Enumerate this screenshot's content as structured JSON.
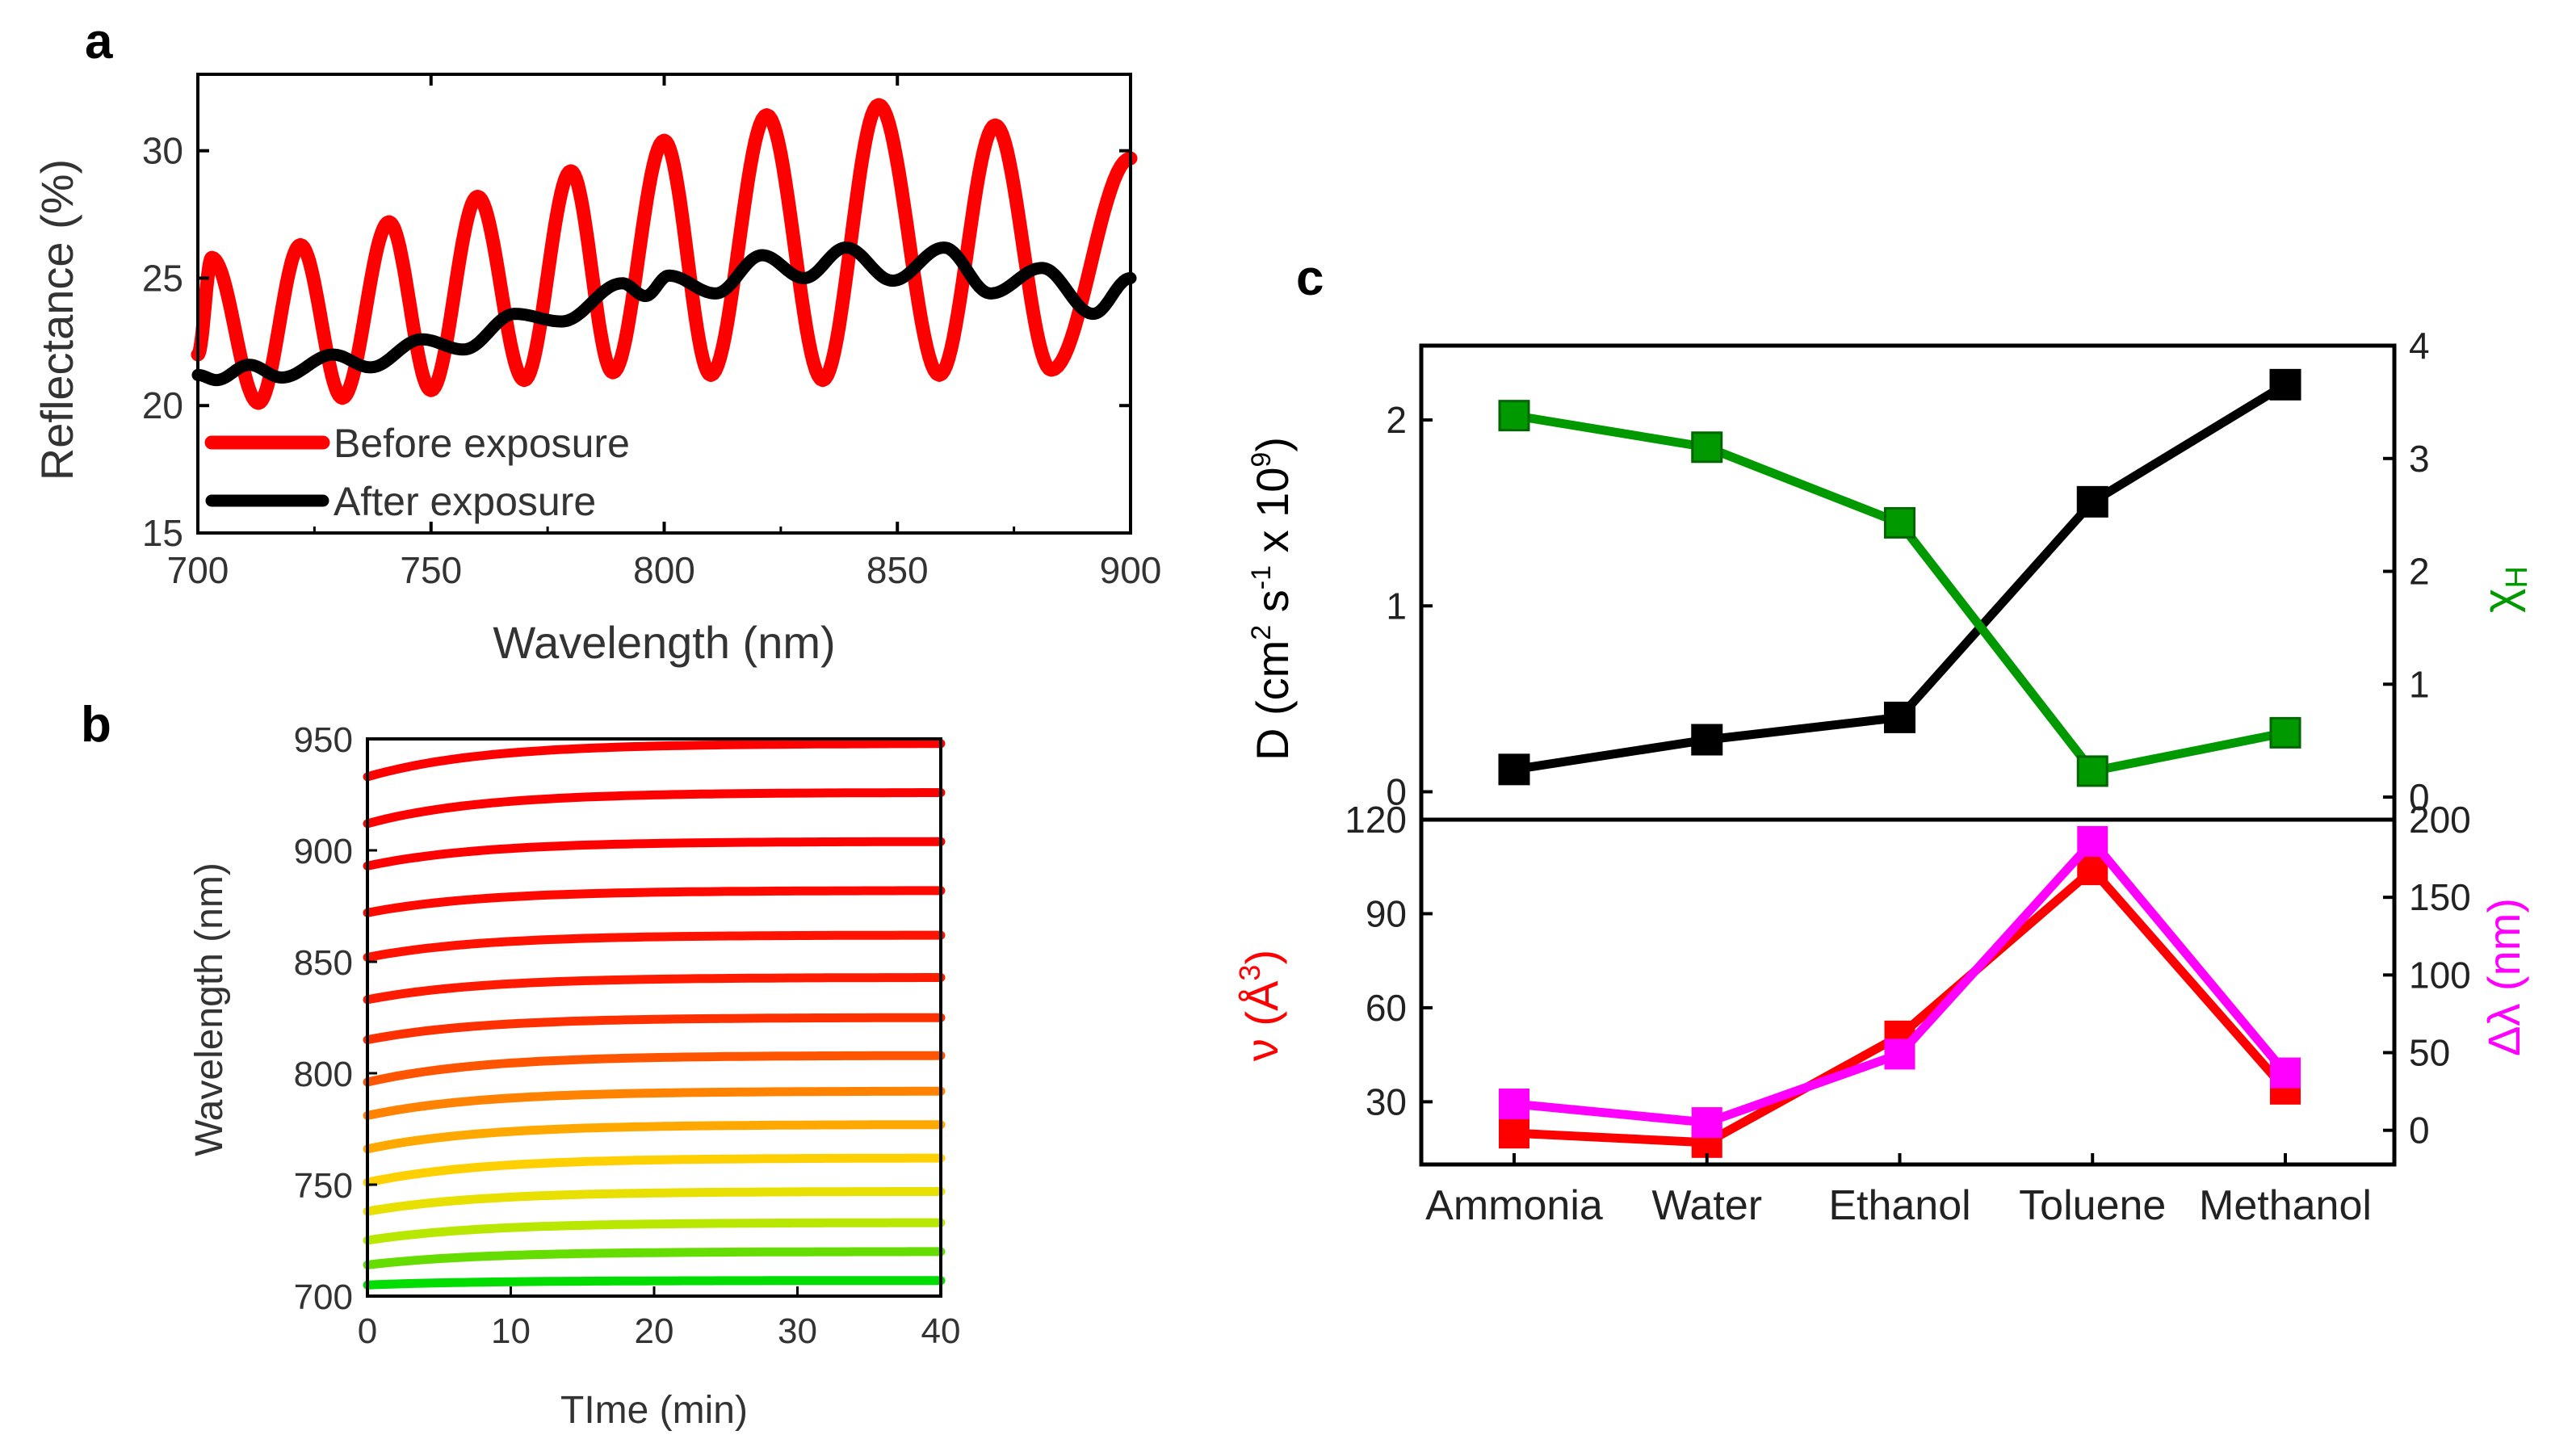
{
  "panels": {
    "a": {
      "letter": "a",
      "chart_data": {
        "type": "line",
        "xlabel": "Wavelength (nm)",
        "ylabel": "Reflectance (%)",
        "xlim": [
          700,
          900
        ],
        "ylim": [
          15,
          33
        ],
        "xticks": [
          700,
          750,
          800,
          850,
          900
        ],
        "yticks": [
          15,
          20,
          25,
          30
        ],
        "series": [
          {
            "name": "Before exposure",
            "color": "#ff0000",
            "peaks": [
              [
                703,
                25.8
              ],
              [
                722,
                26.3
              ],
              [
                741,
                27.2
              ],
              [
                760,
                28.2
              ],
              [
                780,
                29.2
              ],
              [
                800,
                30.4
              ],
              [
                822,
                31.4
              ],
              [
                846,
                31.8
              ],
              [
                871,
                31.0
              ],
              [
                900,
                29.7
              ]
            ],
            "troughs": [
              [
                700,
                22.0
              ],
              [
                713,
                20.1
              ],
              [
                731,
                20.3
              ],
              [
                750,
                20.6
              ],
              [
                770,
                21.0
              ],
              [
                789,
                21.3
              ],
              [
                810,
                21.2
              ],
              [
                834,
                21.0
              ],
              [
                859,
                21.2
              ],
              [
                883,
                21.4
              ]
            ]
          },
          {
            "name": "After exposure",
            "color": "#000000",
            "peaks": [
              [
                700,
                21.2
              ],
              [
                711,
                21.6
              ],
              [
                729,
                22.0
              ],
              [
                748,
                22.6
              ],
              [
                768,
                23.6
              ],
              [
                791,
                24.8
              ],
              [
                801,
                25.1
              ],
              [
                821,
                25.9
              ],
              [
                839,
                26.2
              ],
              [
                860,
                26.2
              ],
              [
                881,
                25.4
              ],
              [
                900,
                25.0
              ]
            ],
            "troughs": [
              [
                704,
                21.0
              ],
              [
                718,
                21.1
              ],
              [
                737,
                21.5
              ],
              [
                757,
                22.2
              ],
              [
                778,
                23.3
              ],
              [
                796,
                24.3
              ],
              [
                811,
                24.4
              ],
              [
                830,
                25.0
              ],
              [
                849,
                24.9
              ],
              [
                870,
                24.4
              ],
              [
                892,
                23.6
              ]
            ]
          }
        ]
      }
    },
    "b": {
      "letter": "b",
      "chart_data": {
        "type": "line",
        "xlabel": "TIme (min)",
        "ylabel": "Wavelength (nm)",
        "xlim": [
          0,
          40
        ],
        "ylim": [
          700,
          950
        ],
        "xticks": [
          0,
          10,
          20,
          30,
          40
        ],
        "yticks": [
          700,
          750,
          800,
          850,
          900,
          950
        ],
        "series": [
          {
            "start": 933,
            "end": 948,
            "color": "#ff0000"
          },
          {
            "start": 912,
            "end": 926,
            "color": "#ff0000"
          },
          {
            "start": 893,
            "end": 904,
            "color": "#ff0000"
          },
          {
            "start": 872,
            "end": 882,
            "color": "#ff0800"
          },
          {
            "start": 852,
            "end": 862,
            "color": "#ff1200"
          },
          {
            "start": 833,
            "end": 843,
            "color": "#ff1a00"
          },
          {
            "start": 815,
            "end": 825,
            "color": "#ff3000"
          },
          {
            "start": 796,
            "end": 808,
            "color": "#ff5500"
          },
          {
            "start": 781,
            "end": 792,
            "color": "#ff8200"
          },
          {
            "start": 766,
            "end": 777,
            "color": "#ffa800"
          },
          {
            "start": 751,
            "end": 762,
            "color": "#ffd000"
          },
          {
            "start": 738,
            "end": 747,
            "color": "#e8e000"
          },
          {
            "start": 725,
            "end": 733,
            "color": "#b8e800"
          },
          {
            "start": 714,
            "end": 720,
            "color": "#66dd00"
          },
          {
            "start": 705,
            "end": 707,
            "color": "#00dd00"
          }
        ]
      }
    },
    "c": {
      "letter": "c",
      "chart_data": [
        {
          "type": "line",
          "position": "top",
          "categories": [
            "Ammonia",
            "Water",
            "Ethanol",
            "Toluene",
            "Methanol"
          ],
          "left_axis": {
            "label_main": "D (cm",
            "sup1": "2",
            "mid1": " s",
            "sup2": "-1",
            "mid2": " x 10",
            "sup3": "9",
            "end": ")",
            "ylim": [
              -0.15,
              2.4
            ],
            "ticks": [
              0,
              1,
              2
            ]
          },
          "right_axis": {
            "label_main": "χ",
            "sub": "H",
            "color": "#009900",
            "ylim": [
              -0.2,
              4.0
            ],
            "ticks": [
              0,
              1,
              2,
              3,
              4
            ]
          },
          "series": [
            {
              "name": "D",
              "axis": "left",
              "color": "#000000",
              "values": [
                0.12,
                0.28,
                0.4,
                1.56,
                2.19
              ]
            },
            {
              "name": "χH",
              "axis": "right",
              "color": "#009900",
              "values": [
                3.38,
                3.1,
                2.43,
                0.23,
                0.57
              ]
            }
          ]
        },
        {
          "type": "line",
          "position": "bottom",
          "categories": [
            "Ammonia",
            "Water",
            "Ethanol",
            "Toluene",
            "Methanol"
          ],
          "left_axis": {
            "label_main": "ν (Å",
            "sup1": "3",
            "end": ")",
            "color": "#ff0000",
            "ylim": [
              10,
              120
            ],
            "ticks": [
              30,
              60,
              90,
              120
            ]
          },
          "right_axis": {
            "label_main": "Δλ (nm)",
            "color": "#ff00ff",
            "ylim": [
              -22,
              200
            ],
            "ticks": [
              0,
              50,
              100,
              150,
              200
            ]
          },
          "series": [
            {
              "name": "ν",
              "axis": "left",
              "color": "#ff0000",
              "values": [
                20.0,
                17.0,
                51.0,
                104.0,
                34.0
              ]
            },
            {
              "name": "Δλ",
              "axis": "right",
              "color": "#ff00ff",
              "values": [
                17.0,
                5.0,
                49.0,
                186.0,
                37.0
              ]
            }
          ]
        }
      ]
    }
  }
}
